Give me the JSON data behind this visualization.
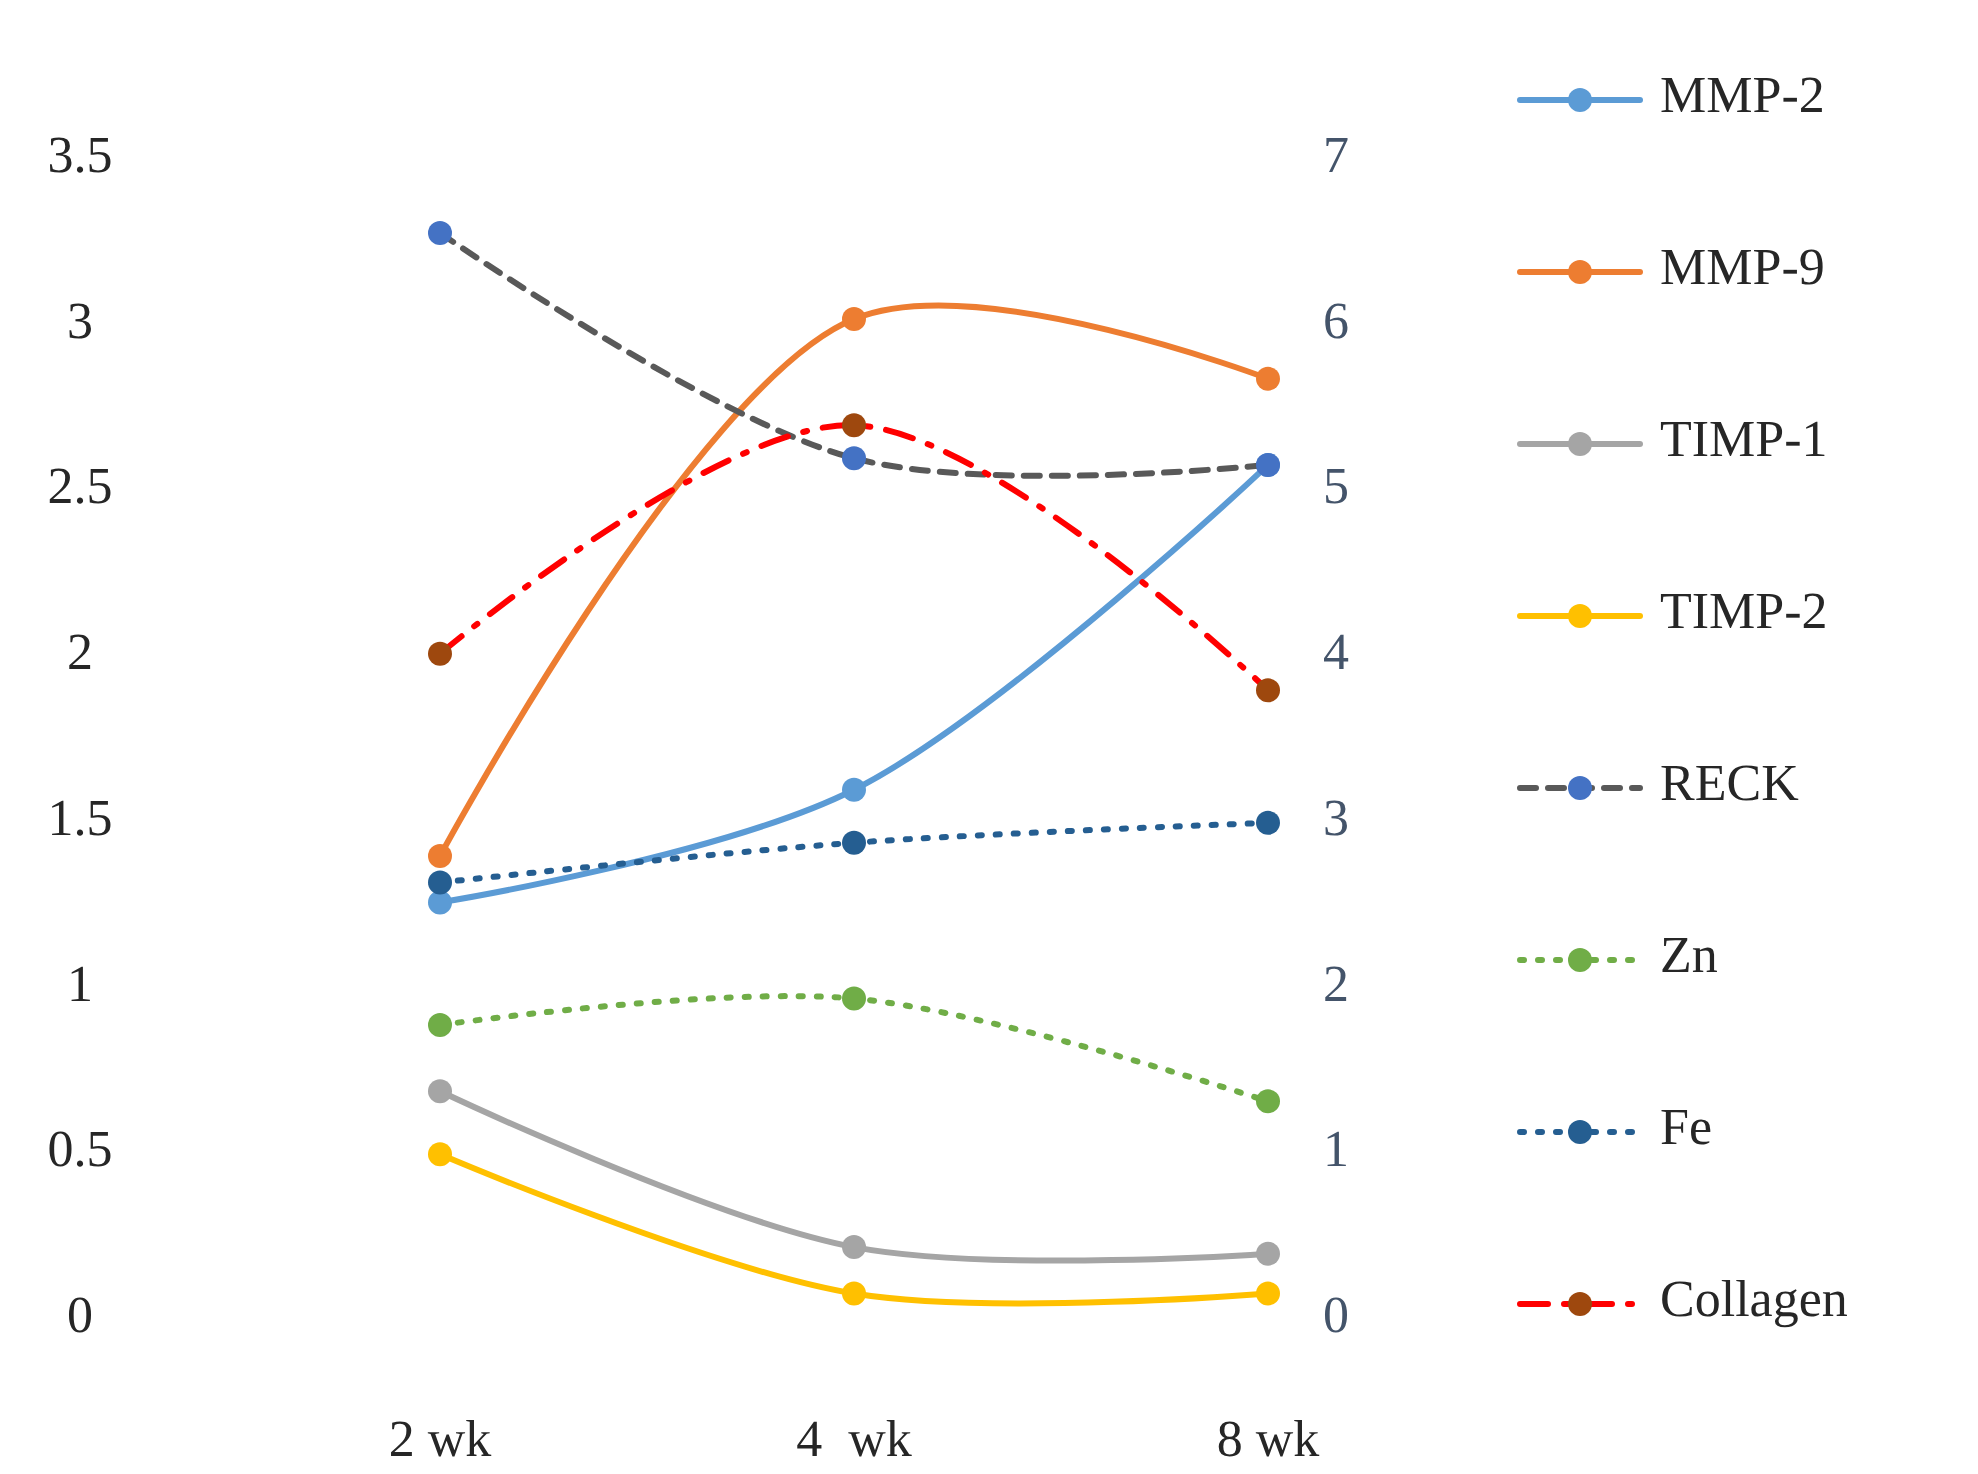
{
  "chart_data": {
    "type": "line",
    "categories": [
      "2 wk",
      "4  wk",
      "8 wk"
    ],
    "ylim": [
      0,
      3.5
    ],
    "yticks": [
      0,
      0.5,
      1,
      1.5,
      2,
      2.5,
      3,
      3.5
    ],
    "y2lim": [
      0,
      7
    ],
    "y2ticks": [
      0,
      1,
      2,
      3,
      4,
      5,
      6,
      7
    ],
    "grid": false,
    "legend": "right",
    "marker": "circle",
    "series": [
      {
        "name": "MMP-2",
        "color": "#5b9bd5",
        "line_style": "solid",
        "values": [
          1.26,
          1.6,
          2.58
        ]
      },
      {
        "name": "MMP-9",
        "color": "#ed7d31",
        "line_style": "solid",
        "values": [
          1.4,
          3.02,
          2.84
        ]
      },
      {
        "name": "TIMP-1",
        "color": "#a5a5a5",
        "line_style": "solid",
        "values": [
          0.69,
          0.22,
          0.2
        ]
      },
      {
        "name": "TIMP-2",
        "color": "#ffc000",
        "line_style": "solid",
        "values": [
          0.5,
          0.08,
          0.08
        ]
      },
      {
        "name": "RECK",
        "color": "#595959",
        "colors": [
          "#4472c4",
          "#4472c4",
          "#4472c4"
        ],
        "line_style": "dashed",
        "values": [
          3.28,
          2.6,
          2.58
        ]
      },
      {
        "name": "Zn",
        "color": "#70ad47",
        "line_style": "dotted",
        "values": [
          0.89,
          0.97,
          0.66
        ]
      },
      {
        "name": "Fe",
        "color": "#255e91",
        "line_style": "dotted",
        "values": [
          1.32,
          1.44,
          1.5
        ]
      },
      {
        "name": "Collagen",
        "color": "#ff0000",
        "colors": [
          "#9e480e",
          "#9e480e",
          "#9e480e"
        ],
        "line_style": "dashdot",
        "values": [
          2.01,
          2.7,
          1.9
        ]
      }
    ]
  }
}
